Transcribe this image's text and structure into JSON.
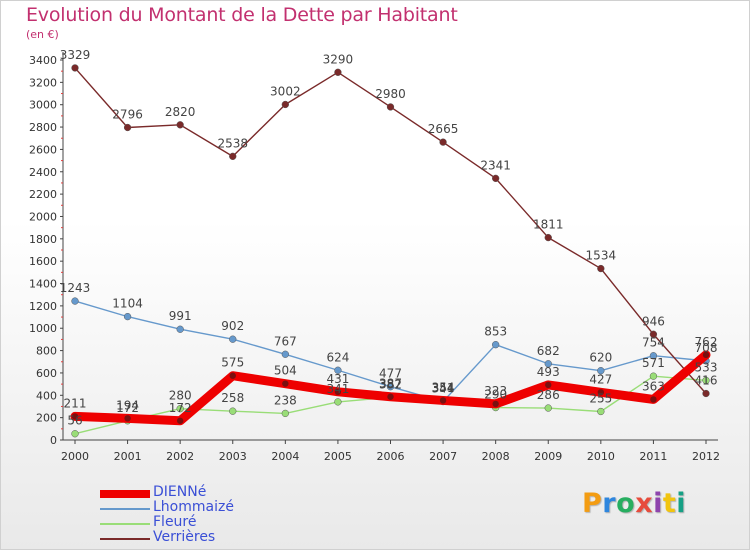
{
  "header": {
    "title": "Evolution du Montant de la Dette par Habitant",
    "unit": "(en €)"
  },
  "brand": {
    "logo_text": "Proxiti",
    "logo_colors": [
      "#f39c12",
      "#2e86de",
      "#27ae60",
      "#e74c3c",
      "#8e44ad",
      "#f1c40f",
      "#16a085"
    ]
  },
  "chart_data": {
    "type": "line",
    "title": "Evolution du Montant de la Dette par Habitant",
    "ylabel": "(en €)",
    "xlabel": "",
    "x": [
      "2000",
      "2001",
      "2002",
      "2003",
      "2004",
      "2005",
      "2006",
      "2007",
      "2008",
      "2009",
      "2010",
      "2011",
      "2012"
    ],
    "ylim": [
      0,
      3400
    ],
    "yticks": [
      0,
      200,
      400,
      600,
      800,
      1000,
      1200,
      1400,
      1600,
      1800,
      2000,
      2200,
      2400,
      2600,
      2800,
      3000,
      3200,
      3400
    ],
    "grid": false,
    "legend_position": "bottom-left",
    "series": [
      {
        "name": "DIENNé",
        "color": "#ee0000",
        "emphasis": true,
        "values": [
          211,
          194,
          172,
          575,
          504,
          431,
          387,
          354,
          323,
          493,
          427,
          363,
          762
        ]
      },
      {
        "name": "Lhommaizé",
        "color": "#6699cc",
        "emphasis": false,
        "values": [
          1243,
          1104,
          991,
          902,
          767,
          624,
          477,
          344,
          853,
          682,
          620,
          754,
          708
        ]
      },
      {
        "name": "Fleuré",
        "color": "#99dd77",
        "emphasis": false,
        "values": [
          56,
          172,
          280,
          258,
          238,
          341,
          382,
          351,
          290,
          286,
          255,
          571,
          533
        ]
      },
      {
        "name": "Verrières",
        "color": "#7a2a2a",
        "emphasis": false,
        "values": [
          3329,
          2796,
          2820,
          2538,
          3002,
          3290,
          2980,
          2665,
          2341,
          1811,
          1534,
          946,
          416
        ]
      }
    ]
  }
}
